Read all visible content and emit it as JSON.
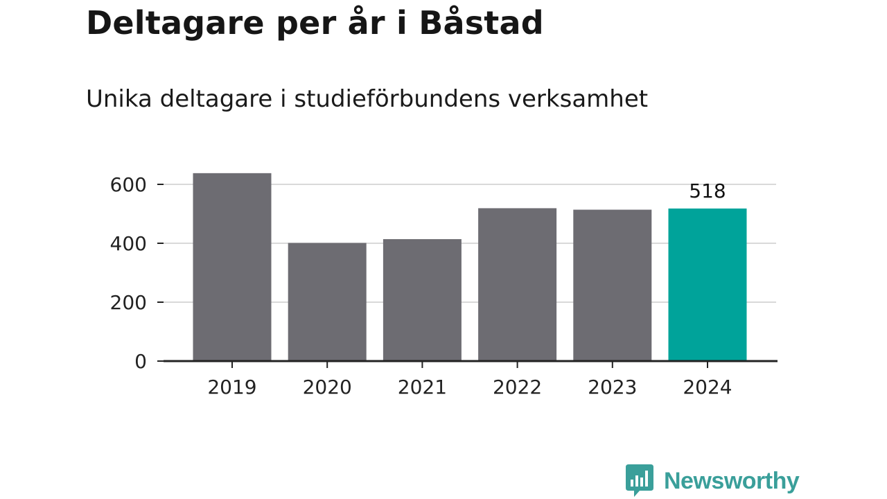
{
  "chart_data": {
    "type": "bar",
    "title": "Deltagare per år i Båstad",
    "subtitle": "Unika deltagare i studieförbundens verksamhet",
    "categories": [
      "2019",
      "2020",
      "2021",
      "2022",
      "2023",
      "2024"
    ],
    "values": [
      638,
      401,
      414,
      519,
      514,
      518
    ],
    "ylim": [
      0,
      650
    ],
    "yticks": [
      0,
      200,
      400,
      600
    ],
    "grid": true,
    "highlight": {
      "category": "2024",
      "label": "518"
    },
    "colors": {
      "bar": "#6d6c72",
      "highlight": "#00a39a",
      "grid": "#d9d9d9",
      "axis": "#222222"
    }
  },
  "brand": {
    "name": "Newsworthy",
    "color": "#3a9f9a",
    "icon": "newsworthy-logo-icon"
  }
}
